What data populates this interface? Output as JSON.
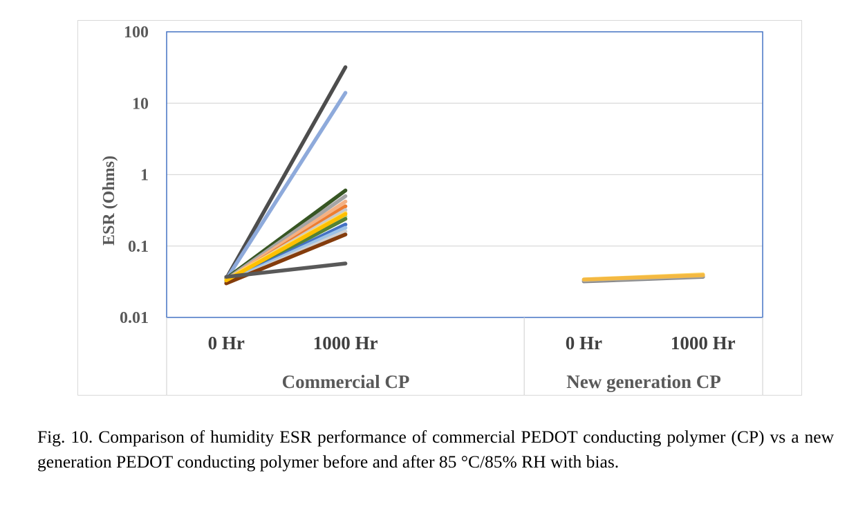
{
  "chart_data": {
    "type": "line",
    "ylabel": "ESR (Ohms)",
    "yscale": "log",
    "ylim": [
      0.01,
      100
    ],
    "yticks": [
      "0.01",
      "0.1",
      "1",
      "10",
      "100"
    ],
    "ytick_values": [
      0.01,
      0.1,
      1,
      10,
      100
    ],
    "grid": "horizontal",
    "legend": "none",
    "groups": [
      {
        "name": "Commercial CP",
        "categories": [
          "0 Hr",
          "1000 Hr"
        ],
        "series": [
          {
            "color": "#4d4d4d",
            "values": [
              0.035,
              32
            ]
          },
          {
            "color": "#8eaadb",
            "values": [
              0.034,
              14
            ]
          },
          {
            "color": "#375623",
            "values": [
              0.035,
              0.6
            ]
          },
          {
            "color": "#a5a5a5",
            "values": [
              0.034,
              0.5
            ]
          },
          {
            "color": "#f4b183",
            "values": [
              0.033,
              0.42
            ]
          },
          {
            "color": "#ed7d31",
            "values": [
              0.032,
              0.36
            ]
          },
          {
            "color": "#c9c9c9",
            "values": [
              0.033,
              0.32
            ]
          },
          {
            "color": "#ffd966",
            "values": [
              0.034,
              0.29
            ]
          },
          {
            "color": "#a9d18e",
            "values": [
              0.033,
              0.26
            ]
          },
          {
            "color": "#548235",
            "values": [
              0.032,
              0.24
            ]
          },
          {
            "color": "#4472c4",
            "values": [
              0.031,
              0.2
            ]
          },
          {
            "color": "#9dc3e6",
            "values": [
              0.031,
              0.18
            ]
          },
          {
            "color": "#d0d0d0",
            "values": [
              0.03,
              0.16
            ]
          },
          {
            "color": "#843c0c",
            "values": [
              0.03,
              0.145
            ]
          },
          {
            "color": "#ffc000",
            "values": [
              0.033,
              0.28
            ]
          },
          {
            "color": "#595959",
            "values": [
              0.037,
              0.057
            ]
          }
        ]
      },
      {
        "name": "New generation CP",
        "categories": [
          "0 Hr",
          "1000 Hr"
        ],
        "series": [
          {
            "color": "#7f7f7f",
            "values": [
              0.032,
              0.037
            ]
          },
          {
            "color": "#a5a5a5",
            "values": [
              0.033,
              0.038
            ]
          },
          {
            "color": "#ffd966",
            "values": [
              0.034,
              0.04
            ]
          },
          {
            "color": "#f4b942",
            "values": [
              0.034,
              0.039
            ]
          }
        ]
      }
    ]
  },
  "caption": "Fig. 10. Comparison of humidity ESR performance of commercial PEDOT conducting polymer (CP) vs a new generation PEDOT conducting polymer before and after 85 °C/85% RH with bias."
}
